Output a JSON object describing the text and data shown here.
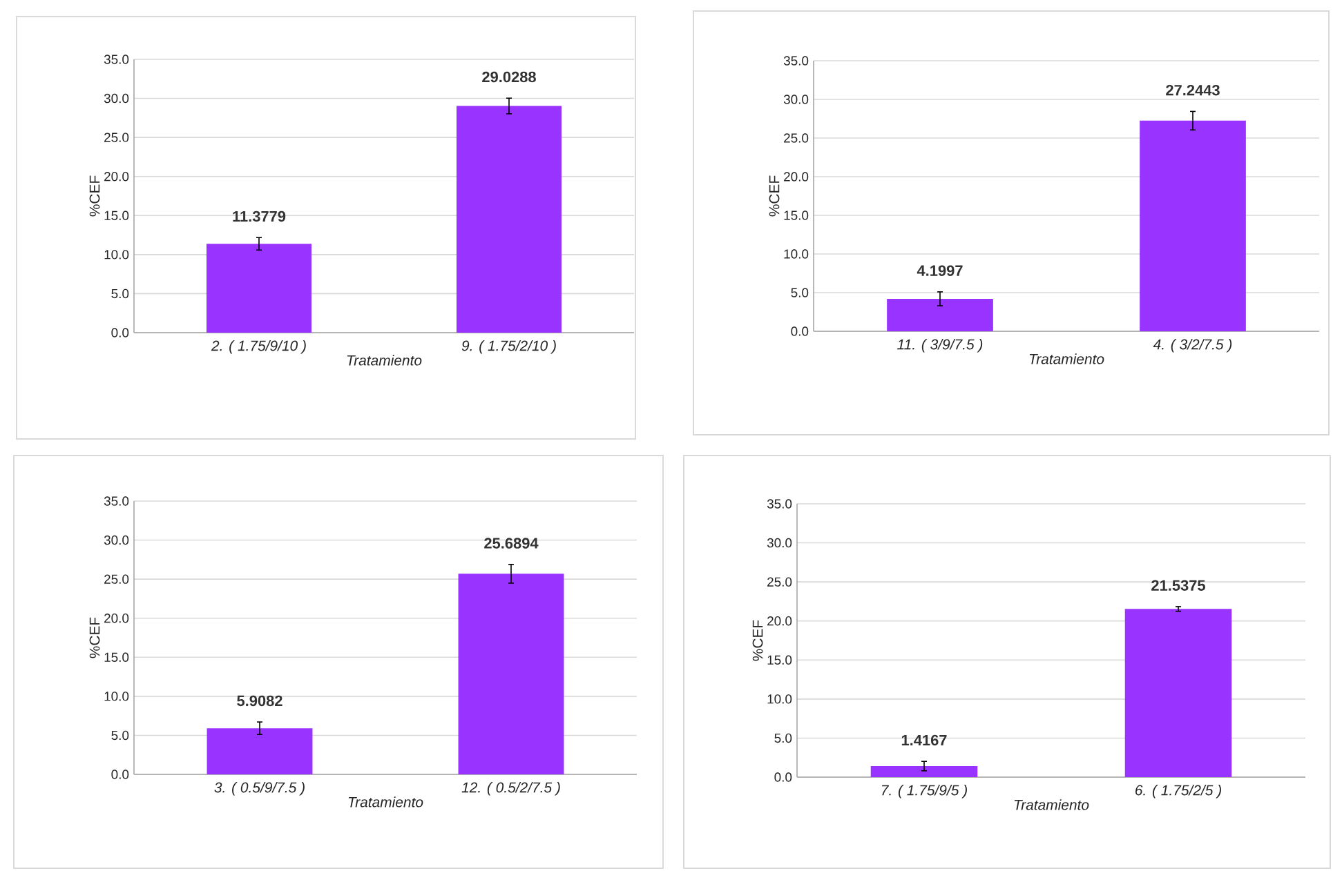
{
  "chart_data": [
    {
      "type": "bar",
      "categories": [
        "2. ( 1.75/9/10 )",
        "9. ( 1.75/2/10 )"
      ],
      "values": [
        11.3779,
        29.0288
      ],
      "errors": [
        0.8,
        1.0
      ],
      "value_labels": [
        "11.3779",
        "29.0288"
      ],
      "color": "#9933ff",
      "xlabel": "Tratamiento",
      "ylabel": "%CEF",
      "ylim": [
        0,
        35
      ],
      "yticks": [
        {
          "value": 0,
          "label": "0.0"
        },
        {
          "value": 5,
          "label": "5.0"
        },
        {
          "value": 10,
          "label": "10.0"
        },
        {
          "value": 15,
          "label": "15.0"
        },
        {
          "value": 20,
          "label": "20.0"
        },
        {
          "value": 25,
          "label": "25.0"
        },
        {
          "value": 30,
          "label": "30.0"
        },
        {
          "value": 35,
          "label": "35.0"
        }
      ],
      "grid": "y"
    },
    {
      "type": "bar",
      "categories": [
        "11. ( 3/9/7.5 )",
        "4. ( 3/2/7.5 )"
      ],
      "values": [
        4.1997,
        27.2443
      ],
      "errors": [
        0.9,
        1.2
      ],
      "value_labels": [
        "4.1997",
        "27.2443"
      ],
      "color": "#9933ff",
      "xlabel": "Tratamiento",
      "ylabel": "%CEF",
      "ylim": [
        0,
        35
      ],
      "yticks": [
        {
          "value": 0,
          "label": "0.0"
        },
        {
          "value": 5,
          "label": "5.0"
        },
        {
          "value": 10,
          "label": "10.0"
        },
        {
          "value": 15,
          "label": "15.0"
        },
        {
          "value": 20,
          "label": "20.0"
        },
        {
          "value": 25,
          "label": "25.0"
        },
        {
          "value": 30,
          "label": "30.0"
        },
        {
          "value": 35,
          "label": "35.0"
        }
      ],
      "grid": "y"
    },
    {
      "type": "bar",
      "categories": [
        "3. ( 0.5/9/7.5 )",
        "12. ( 0.5/2/7.5 )"
      ],
      "values": [
        5.9082,
        25.6894
      ],
      "errors": [
        0.8,
        1.2
      ],
      "value_labels": [
        "5.9082",
        "25.6894"
      ],
      "color": "#9933ff",
      "xlabel": "Tratamiento",
      "ylabel": "%CEF",
      "ylim": [
        0,
        35
      ],
      "yticks": [
        {
          "value": 0,
          "label": "0.0"
        },
        {
          "value": 5,
          "label": "5.0"
        },
        {
          "value": 10,
          "label": "10.0"
        },
        {
          "value": 15,
          "label": "15.0"
        },
        {
          "value": 20,
          "label": "20.0"
        },
        {
          "value": 25,
          "label": "25.0"
        },
        {
          "value": 30,
          "label": "30.0"
        },
        {
          "value": 35,
          "label": "35.0"
        }
      ],
      "grid": "y"
    },
    {
      "type": "bar",
      "categories": [
        "7. ( 1.75/9/5 )",
        "6. ( 1.75/2/5 )"
      ],
      "values": [
        1.4167,
        21.5375
      ],
      "errors": [
        0.6,
        0.3
      ],
      "value_labels": [
        "1.4167",
        "21.5375"
      ],
      "color": "#9933ff",
      "xlabel": "Tratamiento",
      "ylabel": "%CEF",
      "ylim": [
        0,
        35
      ],
      "yticks": [
        {
          "value": 0,
          "label": "0.0"
        },
        {
          "value": 5,
          "label": "5.0"
        },
        {
          "value": 10,
          "label": "10.0"
        },
        {
          "value": 15,
          "label": "15.0"
        },
        {
          "value": 20,
          "label": "20.0"
        },
        {
          "value": 25,
          "label": "25.0"
        },
        {
          "value": 30,
          "label": "30.0"
        },
        {
          "value": 35,
          "label": "35.0"
        }
      ],
      "grid": "y"
    }
  ]
}
